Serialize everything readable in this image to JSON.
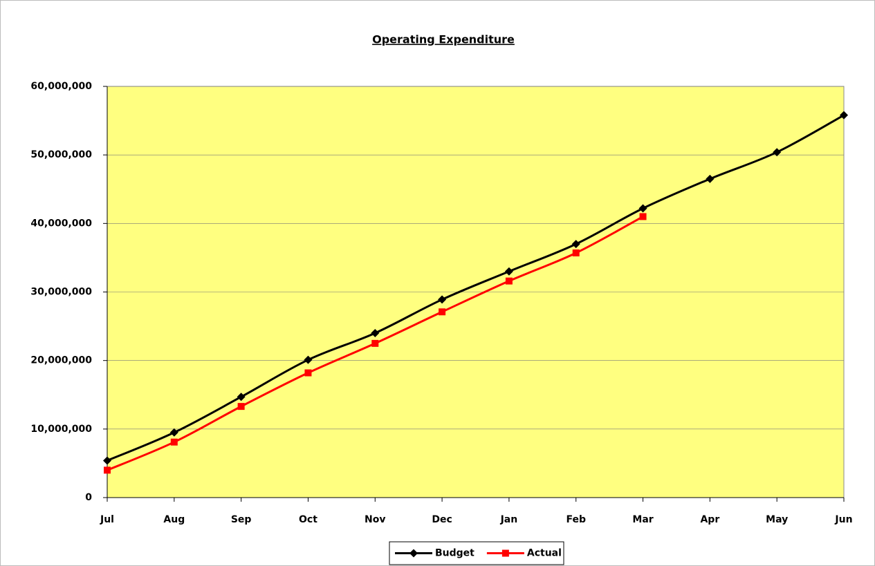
{
  "chart_data": {
    "type": "line",
    "title": "Operating Expenditure",
    "categories": [
      "Jul",
      "Aug",
      "Sep",
      "Oct",
      "Nov",
      "Dec",
      "Jan",
      "Feb",
      "Mar",
      "Apr",
      "May",
      "Jun"
    ],
    "series": [
      {
        "name": "Budget",
        "color": "#000000",
        "marker": "diamond",
        "values": [
          5400000,
          9500000,
          14700000,
          20100000,
          24000000,
          28900000,
          33000000,
          37000000,
          42200000,
          46500000,
          50400000,
          55800000
        ]
      },
      {
        "name": "Actual",
        "color": "#ff0000",
        "marker": "square",
        "values": [
          4000000,
          8100000,
          13300000,
          18200000,
          22500000,
          27100000,
          31600000,
          35700000,
          41000000,
          null,
          null,
          null
        ]
      }
    ],
    "ylim": [
      0,
      60000000
    ],
    "yticks": [
      0,
      {
        "value": 10000000,
        "label": "10,000,000"
      },
      {
        "value": 20000000,
        "label": "20,000,000"
      },
      {
        "value": 30000000,
        "label": "30,000,000"
      },
      {
        "value": 40000000,
        "label": "40,000,000"
      },
      {
        "value": 50000000,
        "label": "50,000,000"
      },
      {
        "value": 60000000,
        "label": "60,000,000"
      }
    ],
    "grid": true,
    "plot_background": "#ffff80",
    "legend": "bottom"
  }
}
